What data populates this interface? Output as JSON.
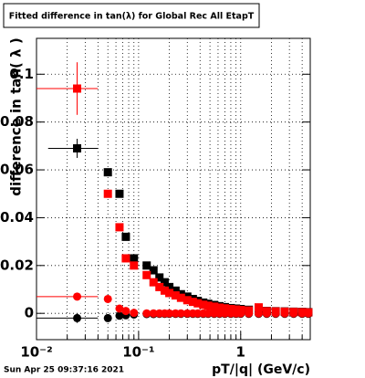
{
  "chart_data": {
    "type": "scatter",
    "title": "Fitted difference in tan(λ) for Global Rec All EtapT",
    "ylabel": "difference in tan( λ )",
    "xlabel": "pT/|q| (GeV/c)",
    "timestamp": "Sun Apr 25 09:37:16 2021",
    "xlog": true,
    "grid": true,
    "xlim": [
      0.01,
      4.8
    ],
    "ylim": [
      -0.011,
      0.115
    ],
    "xticks": [
      {
        "value": 0.01,
        "label": "10⁻²"
      },
      {
        "value": 0.1,
        "label": "10⁻¹"
      },
      1
    ],
    "xminorticks": [
      0.02,
      0.03,
      0.04,
      0.05,
      0.06,
      0.07,
      0.08,
      0.09,
      0.2,
      0.3,
      0.4,
      0.5,
      0.6,
      0.7,
      0.8,
      0.9,
      2,
      3,
      4
    ],
    "yticks": [
      0,
      0.02,
      0.04,
      0.06,
      0.08,
      0.1
    ],
    "x": [
      0.025,
      0.05,
      0.065,
      0.075,
      0.09,
      0.12,
      0.14,
      0.16,
      0.18,
      0.2,
      0.23,
      0.26,
      0.3,
      0.34,
      0.38,
      0.43,
      0.48,
      0.55,
      0.62,
      0.7,
      0.8,
      0.9,
      1.0,
      1.2,
      1.5,
      1.8,
      2.2,
      2.7,
      3.3,
      4.0,
      4.6
    ],
    "series": [
      {
        "color": "#000000",
        "marker": "square",
        "values": [
          0.069,
          0.059,
          0.05,
          0.032,
          0.023,
          0.02,
          0.018,
          0.015,
          0.013,
          0.011,
          0.0095,
          0.008,
          0.007,
          0.006,
          0.0052,
          0.0045,
          0.004,
          0.0035,
          0.003,
          0.0026,
          0.0022,
          0.002,
          0.0018,
          0.0015,
          0.0012,
          0.001,
          0.0009,
          0.0008,
          0.0007,
          0.0006,
          0.0005
        ],
        "xlow": [
          0.013,
          null,
          null,
          null,
          null,
          null,
          null,
          null,
          null,
          null,
          null,
          null,
          null,
          null,
          null,
          null,
          null,
          null,
          null,
          null,
          null,
          null,
          null,
          null,
          null,
          null,
          null,
          null,
          null,
          null,
          null
        ],
        "xhigh": [
          0.04,
          null,
          null,
          null,
          null,
          null,
          null,
          null,
          null,
          null,
          null,
          null,
          null,
          null,
          null,
          null,
          null,
          null,
          null,
          null,
          null,
          null,
          null,
          null,
          null,
          null,
          null,
          null,
          null,
          null,
          null
        ],
        "yerr": [
          0.004,
          null,
          null,
          null,
          null,
          null,
          null,
          null,
          null,
          null,
          null,
          null,
          null,
          null,
          null,
          null,
          null,
          null,
          null,
          null,
          null,
          null,
          null,
          null,
          null,
          null,
          null,
          null,
          null,
          null,
          null
        ]
      },
      {
        "color": "#ff0000",
        "marker": "square",
        "values": [
          0.094,
          0.05,
          0.036,
          0.023,
          0.02,
          0.016,
          0.013,
          0.011,
          0.0095,
          0.0085,
          0.0075,
          0.0065,
          0.0055,
          0.0048,
          0.0042,
          0.0036,
          0.0032,
          0.0028,
          0.0024,
          0.0021,
          0.0018,
          0.0016,
          0.0014,
          0.0012,
          0.0025,
          0.0009,
          0.0008,
          0.0007,
          0.0006,
          0.0005,
          0.0004
        ],
        "xlow": [
          0.01,
          null,
          null,
          null,
          null,
          null,
          null,
          null,
          null,
          null,
          null,
          null,
          null,
          null,
          null,
          null,
          null,
          null,
          null,
          null,
          null,
          null,
          null,
          null,
          null,
          null,
          null,
          null,
          null,
          null,
          null
        ],
        "xhigh": [
          0.04,
          null,
          null,
          null,
          null,
          null,
          null,
          null,
          null,
          null,
          null,
          null,
          null,
          null,
          null,
          null,
          null,
          null,
          null,
          null,
          null,
          null,
          null,
          null,
          null,
          null,
          null,
          null,
          null,
          null,
          null
        ],
        "yerr": [
          0.011,
          null,
          null,
          null,
          null,
          null,
          null,
          null,
          null,
          null,
          null,
          null,
          null,
          null,
          null,
          null,
          null,
          null,
          null,
          null,
          null,
          null,
          null,
          null,
          null,
          null,
          null,
          null,
          null,
          null,
          null
        ]
      },
      {
        "color": "#000000",
        "marker": "circle",
        "values": [
          -0.002,
          -0.002,
          -0.001,
          -0.0008,
          -0.0005,
          -0.0003,
          -0.0003,
          -0.0002,
          -0.0002,
          -0.0002,
          -0.0002,
          -0.0002,
          -0.0002,
          -0.0002,
          -0.0002,
          -0.0002,
          -0.0002,
          -0.0002,
          -0.0002,
          -0.0002,
          -0.0002,
          -0.0002,
          -0.0002,
          -0.0002,
          -0.0002,
          -0.0002,
          -0.0002,
          -0.0002,
          -0.0002,
          -0.0002,
          -0.0002
        ],
        "xlow": [
          0.01,
          null,
          null,
          null,
          null,
          null,
          null,
          null,
          null,
          null,
          null,
          null,
          null,
          null,
          null,
          null,
          null,
          null,
          null,
          null,
          null,
          null,
          null,
          null,
          null,
          null,
          null,
          null,
          null,
          null,
          null
        ],
        "xhigh": [
          0.04,
          null,
          null,
          null,
          null,
          null,
          null,
          null,
          null,
          null,
          null,
          null,
          null,
          null,
          null,
          null,
          null,
          null,
          null,
          null,
          null,
          null,
          null,
          null,
          null,
          null,
          null,
          null,
          null,
          null,
          null
        ],
        "yerr": [
          0.002,
          null,
          null,
          null,
          null,
          null,
          null,
          null,
          null,
          null,
          null,
          null,
          null,
          null,
          null,
          null,
          null,
          null,
          null,
          null,
          null,
          null,
          null,
          null,
          null,
          null,
          null,
          null,
          null,
          null,
          null
        ]
      },
      {
        "color": "#ff0000",
        "marker": "circle",
        "values": [
          0.007,
          0.006,
          0.002,
          0.001,
          0.0002,
          0,
          0,
          0,
          0,
          0,
          0,
          0,
          0,
          0,
          0,
          0,
          0,
          0,
          0,
          0,
          0,
          0,
          0,
          0,
          0,
          0,
          0,
          0,
          0,
          0,
          0
        ],
        "xlow": [
          0.01,
          null,
          null,
          null,
          null,
          null,
          null,
          null,
          null,
          null,
          null,
          null,
          null,
          null,
          null,
          null,
          null,
          null,
          null,
          null,
          null,
          null,
          null,
          null,
          null,
          null,
          null,
          null,
          null,
          null,
          null
        ],
        "xhigh": [
          0.04,
          null,
          null,
          null,
          null,
          null,
          null,
          null,
          null,
          null,
          null,
          null,
          null,
          null,
          null,
          null,
          null,
          null,
          null,
          null,
          null,
          null,
          null,
          null,
          null,
          null,
          null,
          null,
          null,
          null,
          null
        ],
        "yerr": [
          0.001,
          null,
          null,
          null,
          null,
          null,
          null,
          null,
          null,
          null,
          null,
          null,
          null,
          null,
          null,
          null,
          null,
          null,
          null,
          null,
          null,
          null,
          null,
          null,
          null,
          null,
          null,
          null,
          null,
          null,
          null
        ]
      }
    ]
  }
}
